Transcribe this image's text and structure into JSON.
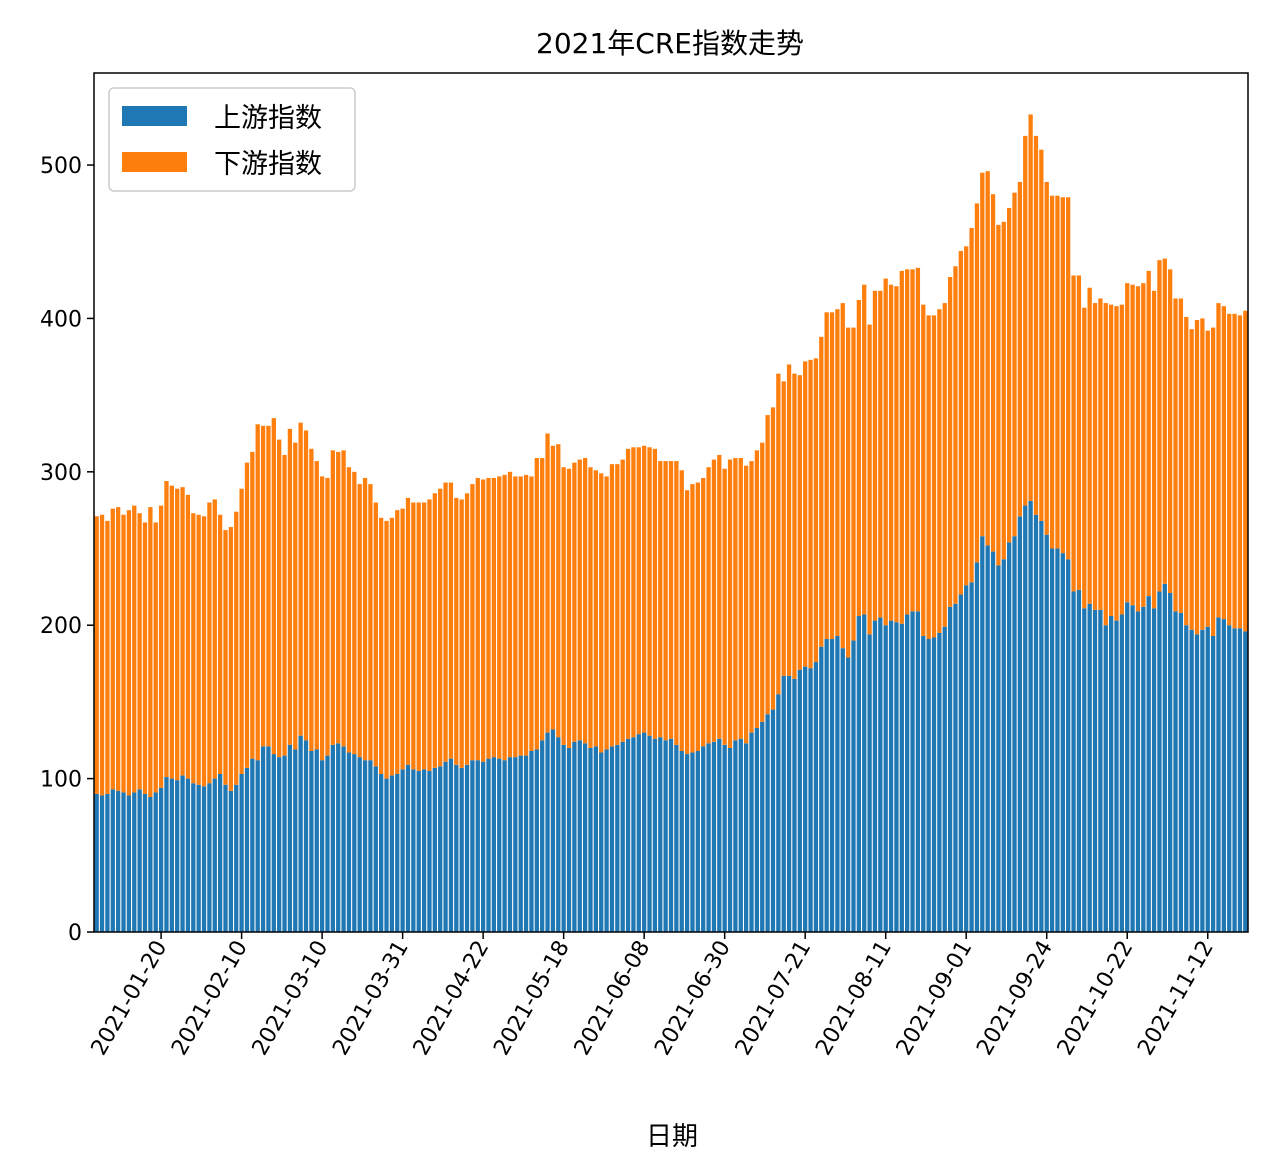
{
  "chart_data": {
    "type": "bar",
    "stacked": true,
    "title": "2021年CRE指数走势",
    "xlabel": "日期",
    "ylabel": "",
    "ylim": [
      0,
      560
    ],
    "yticks": [
      0,
      100,
      200,
      300,
      400,
      500
    ],
    "legend_position": "top-left",
    "grid": false,
    "x_tick_labels": [
      "2021-01-20",
      "2021-02-10",
      "2021-03-10",
      "2021-03-31",
      "2021-04-22",
      "2021-05-18",
      "2021-06-08",
      "2021-06-30",
      "2021-07-21",
      "2021-08-11",
      "2021-09-01",
      "2021-09-24",
      "2021-10-22",
      "2021-11-12"
    ],
    "x_tick_bar_index": [
      12,
      27,
      42,
      57,
      72,
      87,
      102,
      117,
      132,
      147,
      162,
      177,
      192,
      207
    ],
    "series": [
      {
        "name": "上游指数",
        "color": "#1f77b4",
        "values": [
          90,
          89,
          90,
          93,
          92,
          91,
          89,
          91,
          93,
          90,
          88,
          91,
          94,
          101,
          100,
          99,
          102,
          100,
          97,
          96,
          95,
          97,
          100,
          103,
          96,
          92,
          96,
          103,
          107,
          113,
          112,
          121,
          121,
          116,
          114,
          115,
          122,
          119,
          128,
          125,
          118,
          119,
          112,
          115,
          122,
          123,
          121,
          117,
          116,
          114,
          112,
          112,
          108,
          103,
          100,
          102,
          103,
          106,
          109,
          106,
          105,
          106,
          105,
          107,
          108,
          111,
          113,
          109,
          107,
          109,
          112,
          112,
          111,
          113,
          114,
          113,
          112,
          114,
          114,
          115,
          115,
          118,
          119,
          125,
          130,
          132,
          127,
          122,
          120,
          124,
          125,
          123,
          120,
          121,
          117,
          119,
          121,
          122,
          124,
          126,
          127,
          129,
          130,
          128,
          126,
          127,
          125,
          126,
          122,
          118,
          116,
          117,
          118,
          121,
          123,
          124,
          126,
          122,
          120,
          125,
          126,
          123,
          130,
          133,
          137,
          142,
          145,
          155,
          167,
          167,
          165,
          171,
          173,
          172,
          176,
          186,
          191,
          191,
          193,
          185,
          179,
          190,
          206,
          207,
          194,
          203,
          205,
          200,
          203,
          202,
          201,
          207,
          209,
          209,
          193,
          191,
          192,
          195,
          199,
          212,
          214,
          220,
          226,
          228,
          241,
          258,
          252,
          248,
          239,
          243,
          254,
          258,
          271,
          278,
          281,
          272,
          268,
          259,
          250,
          250,
          247,
          243,
          222,
          223,
          211,
          214,
          210,
          210,
          200,
          206,
          203,
          207,
          215,
          213,
          209,
          212,
          219,
          211,
          222,
          227,
          221,
          209,
          208,
          200,
          197,
          194,
          197,
          199,
          193,
          205,
          204,
          200,
          198,
          198,
          196
        ]
      },
      {
        "name": "下游指数",
        "color": "#ff7f0e",
        "values": [
          181,
          183,
          178,
          183,
          185,
          181,
          186,
          187,
          180,
          177,
          189,
          176,
          184,
          193,
          191,
          190,
          188,
          185,
          176,
          176,
          176,
          183,
          182,
          169,
          166,
          172,
          178,
          186,
          199,
          200,
          219,
          209,
          209,
          219,
          207,
          196,
          206,
          200,
          204,
          202,
          197,
          188,
          185,
          181,
          192,
          190,
          193,
          186,
          184,
          178,
          184,
          180,
          172,
          167,
          168,
          168,
          172,
          170,
          174,
          174,
          175,
          174,
          177,
          179,
          181,
          182,
          180,
          174,
          175,
          177,
          180,
          184,
          184,
          183,
          182,
          184,
          186,
          186,
          183,
          182,
          183,
          179,
          190,
          184,
          195,
          185,
          191,
          181,
          182,
          182,
          183,
          186,
          183,
          180,
          182,
          178,
          184,
          183,
          184,
          189,
          189,
          187,
          187,
          188,
          189,
          180,
          182,
          181,
          185,
          183,
          172,
          175,
          175,
          175,
          180,
          184,
          185,
          180,
          188,
          184,
          183,
          181,
          177,
          181,
          182,
          195,
          197,
          209,
          192,
          203,
          199,
          192,
          199,
          201,
          198,
          202,
          213,
          213,
          213,
          225,
          215,
          204,
          206,
          215,
          202,
          215,
          213,
          226,
          219,
          219,
          230,
          225,
          223,
          224,
          216,
          211,
          210,
          211,
          211,
          215,
          220,
          224,
          221,
          231,
          234,
          237,
          244,
          233,
          222,
          220,
          218,
          224,
          218,
          241,
          252,
          247,
          242,
          230,
          230,
          230,
          232,
          236,
          206,
          205,
          196,
          206,
          200,
          203,
          210,
          203,
          205,
          202,
          208,
          209,
          212,
          211,
          212,
          207,
          216,
          212,
          211,
          204,
          205,
          201,
          196,
          205,
          203,
          193,
          201,
          205,
          204,
          203,
          205,
          204,
          209
        ]
      }
    ]
  }
}
